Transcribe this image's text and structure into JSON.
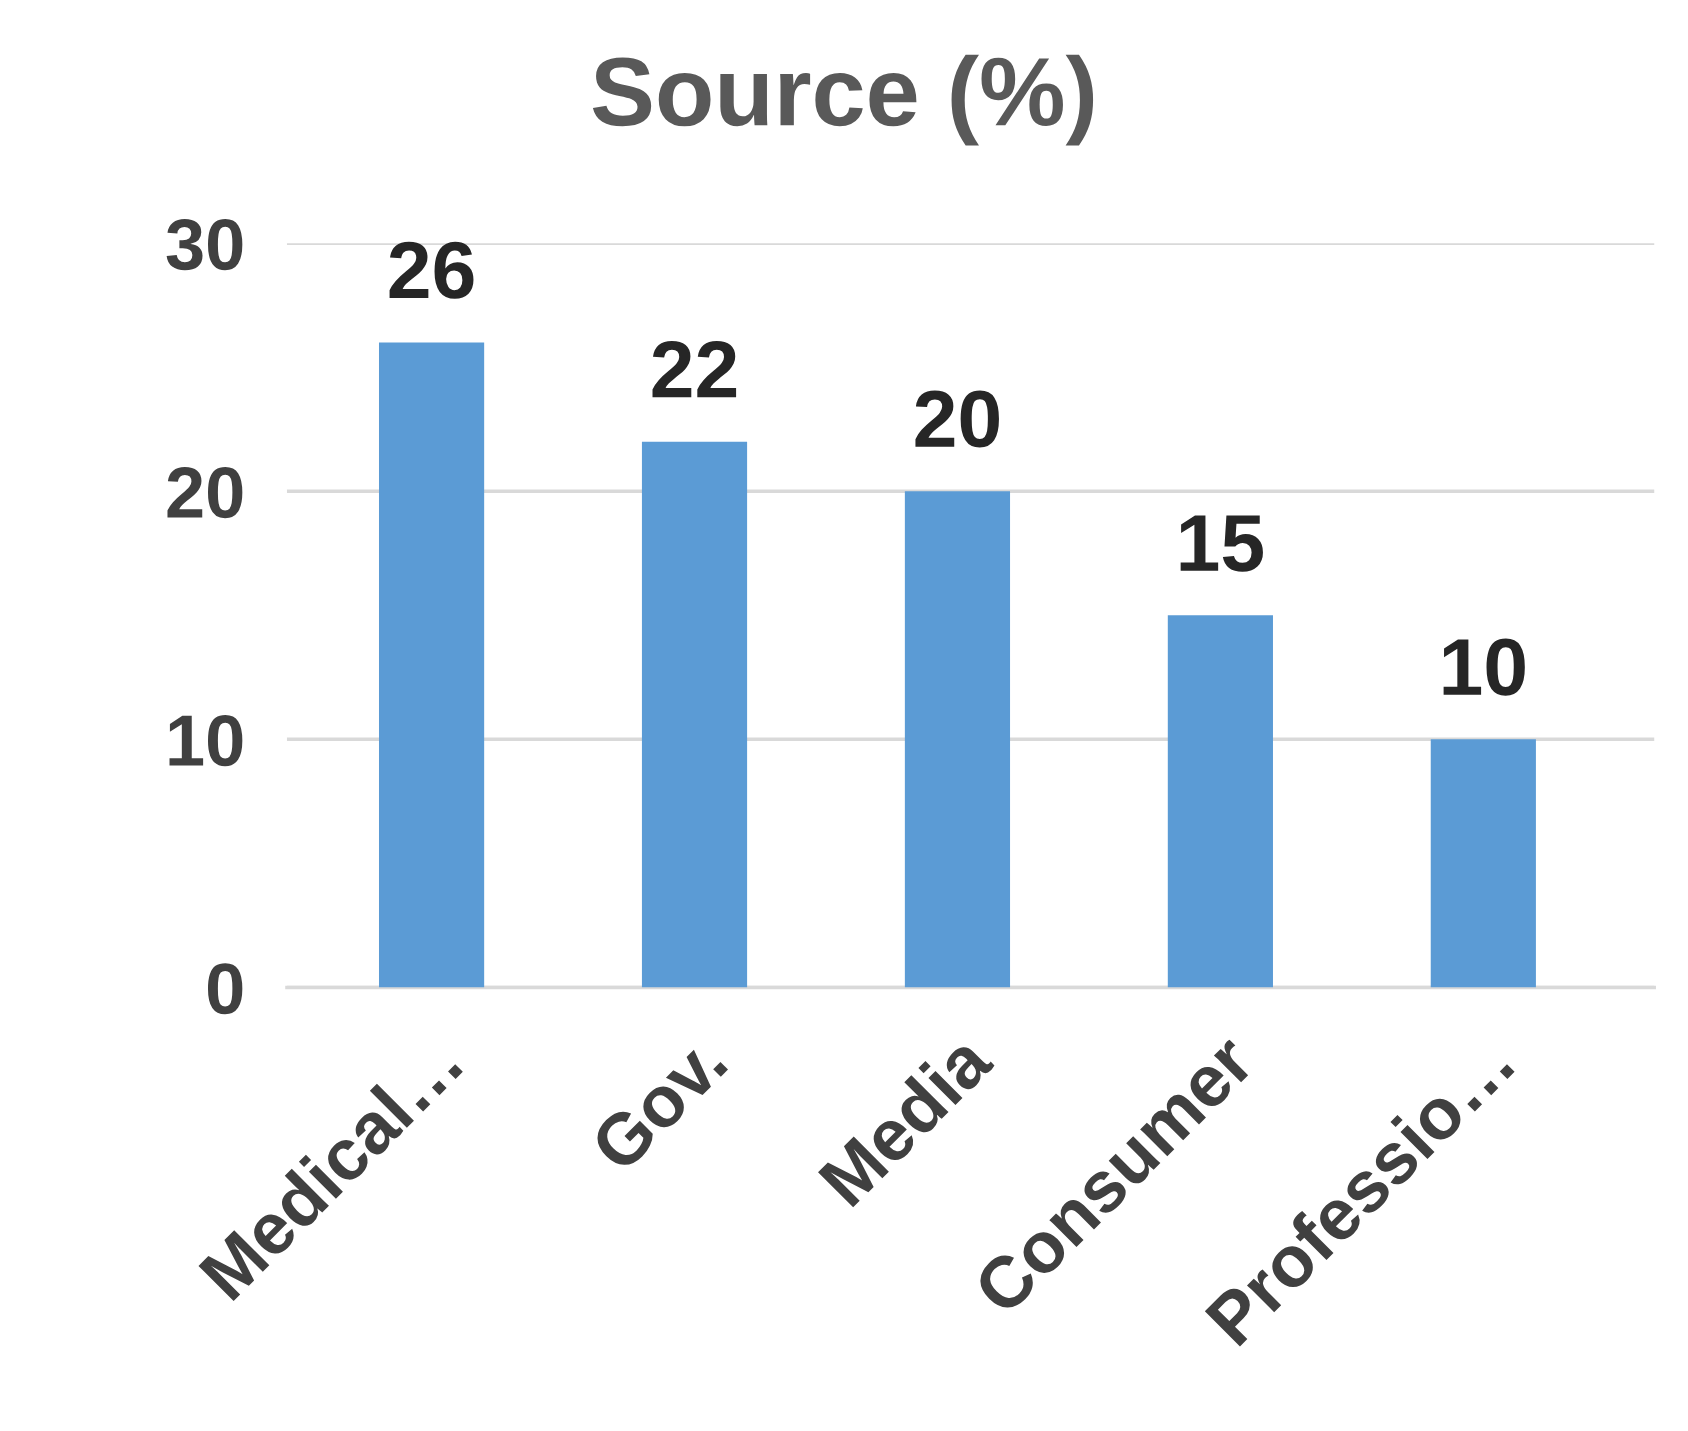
{
  "chart_data": {
    "type": "bar",
    "title": "Source (%)",
    "categories": [
      "Medical…",
      "Gov.",
      "Media",
      "Consumer",
      "Professio…"
    ],
    "values": [
      26,
      22,
      20,
      15,
      10
    ],
    "color": "#5b9bd5",
    "ylim": [
      0,
      30
    ],
    "yticks": [
      0,
      10,
      20,
      30
    ],
    "grid": "y",
    "data_labels": true
  }
}
